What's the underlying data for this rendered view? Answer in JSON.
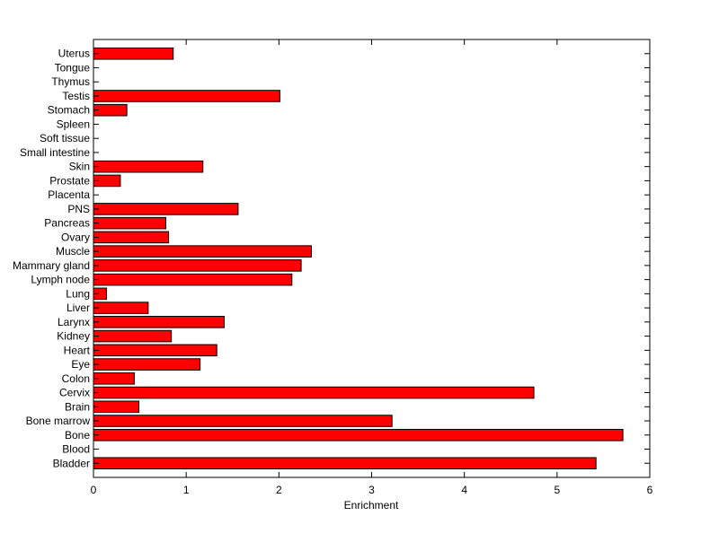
{
  "chart_data": {
    "type": "bar",
    "orientation": "horizontal",
    "title": "",
    "xlabel": "Enrichment",
    "ylabel": "",
    "xlim": [
      0,
      6
    ],
    "xticks": [
      "0",
      "1",
      "2",
      "3",
      "4",
      "5",
      "6"
    ],
    "grid": false,
    "bar_color": "#ff0000",
    "categories": [
      "Bladder",
      "Blood",
      "Bone",
      "Bone marrow",
      "Brain",
      "Cervix",
      "Colon",
      "Eye",
      "Heart",
      "Kidney",
      "Larynx",
      "Liver",
      "Lung",
      "Lymph node",
      "Mammary gland",
      "Muscle",
      "Ovary",
      "Pancreas",
      "PNS",
      "Placenta",
      "Prostate",
      "Skin",
      "Small intestine",
      "Soft tissue",
      "Spleen",
      "Stomach",
      "Testis",
      "Thymus",
      "Tongue",
      "Uterus"
    ],
    "values": [
      5.42,
      0,
      5.71,
      3.22,
      0.49,
      4.75,
      0.44,
      1.15,
      1.33,
      0.84,
      1.41,
      0.59,
      0.14,
      2.14,
      2.24,
      2.35,
      0.81,
      0.78,
      1.56,
      0,
      0.29,
      1.18,
      0,
      0,
      0,
      0.36,
      2.01,
      0,
      0,
      0.86
    ]
  }
}
